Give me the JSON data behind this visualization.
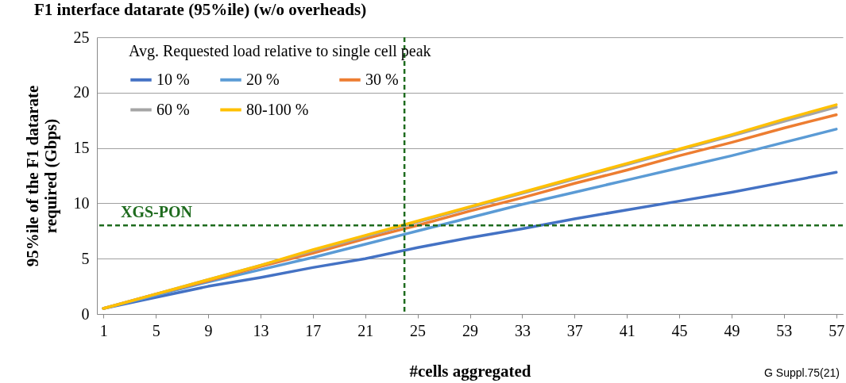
{
  "chart_data": {
    "type": "line",
    "title": "F1 interface datarate (95%ile) (w/o overheads)",
    "xlabel": "#cells aggregated",
    "ylabel": "95%ile of the F1 datarate required (Gbps)",
    "legend_title": "Avg. Requested load relative to single cell peak",
    "legend": "top left",
    "grid": "y",
    "line_style": "solid",
    "marker": "none",
    "x": [
      1,
      5,
      9,
      13,
      17,
      21,
      25,
      29,
      33,
      37,
      41,
      45,
      49,
      53,
      57
    ],
    "xlim": [
      0.5,
      57.5
    ],
    "xticks": [
      1,
      5,
      9,
      13,
      17,
      21,
      25,
      29,
      33,
      37,
      41,
      45,
      49,
      53,
      57
    ],
    "ylim": [
      0,
      25
    ],
    "yticks": [
      0,
      5,
      10,
      15,
      20,
      25
    ],
    "series": [
      {
        "name": "10 %",
        "color": "#4472c4",
        "values": [
          0.5,
          1.5,
          2.5,
          3.3,
          4.2,
          5.0,
          6.0,
          6.9,
          7.7,
          8.6,
          9.4,
          10.2,
          11.0,
          11.9,
          12.8
        ]
      },
      {
        "name": "20 %",
        "color": "#5b9bd5",
        "values": [
          0.5,
          1.7,
          2.9,
          4.0,
          5.1,
          6.3,
          7.5,
          8.7,
          9.9,
          11.0,
          12.1,
          13.2,
          14.3,
          15.5,
          16.7
        ]
      },
      {
        "name": "30 %",
        "color": "#ed7d31",
        "values": [
          0.5,
          1.8,
          3.0,
          4.3,
          5.5,
          6.8,
          8.0,
          9.3,
          10.5,
          11.8,
          13.0,
          14.3,
          15.5,
          16.8,
          18.0
        ]
      },
      {
        "name": "60 %",
        "color": "#a5a5a5",
        "values": [
          0.5,
          1.8,
          3.1,
          4.4,
          5.7,
          7.0,
          8.3,
          9.6,
          10.9,
          12.2,
          13.5,
          14.8,
          16.1,
          17.4,
          18.7
        ]
      },
      {
        "name": "80-100 %",
        "color": "#ffc000",
        "values": [
          0.5,
          1.8,
          3.1,
          4.4,
          5.8,
          7.1,
          8.4,
          9.7,
          11.0,
          12.3,
          13.6,
          14.9,
          16.2,
          17.6,
          18.9
        ]
      }
    ],
    "ref_lines": [
      {
        "axis": "y",
        "value": 8,
        "label": "XGS-PON",
        "color": "#1e6b1e",
        "line_style": "dashed"
      },
      {
        "axis": "x",
        "value": 24,
        "color": "#1e6b1e",
        "line_style": "dashed"
      }
    ],
    "annotations": [
      "G Suppl.75(21)"
    ]
  }
}
